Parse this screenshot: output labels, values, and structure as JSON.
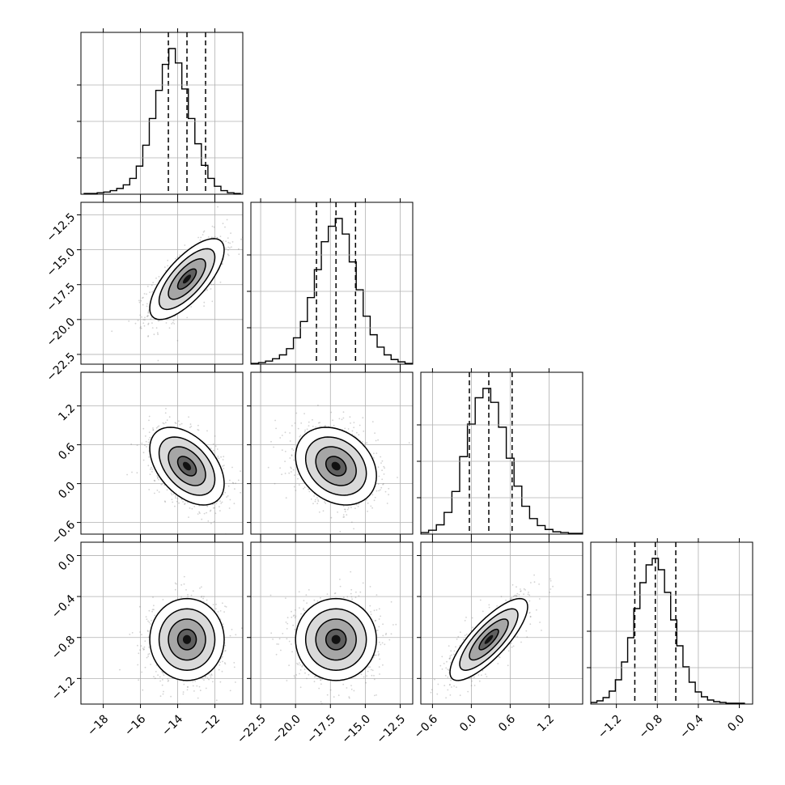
{
  "chart_data": {
    "type": "corner",
    "title": "",
    "dimensions": 4,
    "parameter_labels": [
      "",
      "",
      "",
      ""
    ],
    "ranges": [
      [
        -19.2,
        -10.5
      ],
      [
        -23.2,
        -11.6
      ],
      [
        -0.78,
        1.72
      ],
      [
        -1.45,
        0.13
      ]
    ],
    "ticks": [
      [
        -18,
        -16,
        -14,
        -12
      ],
      [
        -22.5,
        -20.0,
        -17.5,
        -15.0,
        -12.5
      ],
      [
        -0.6,
        0.0,
        0.6,
        1.2
      ],
      [
        -1.2,
        -0.8,
        -0.4,
        0.0
      ]
    ],
    "tick_labels": [
      [
        "−18",
        "−16",
        "−14",
        "−12"
      ],
      [
        "−22.5",
        "−20.0",
        "−17.5",
        "−15.0",
        "−12.5"
      ],
      [
        "−0.6",
        "0.0",
        "0.6",
        "1.2"
      ],
      [
        "−1.2",
        "−0.8",
        "−0.4",
        "0.0"
      ]
    ],
    "quantiles": [
      [
        -14.5,
        -13.5,
        -12.5
      ],
      [
        -18.5,
        -17.1,
        -15.7
      ],
      [
        -0.03,
        0.27,
        0.63
      ],
      [
        -1.02,
        -0.82,
        -0.62
      ]
    ],
    "marginals": [
      {
        "bins": [
          -18.85,
          -18.5,
          -18.15,
          -17.8,
          -17.45,
          -17.1,
          -16.75,
          -16.4,
          -16.05,
          -15.7,
          -15.35,
          -15.0,
          -14.65,
          -14.3,
          -13.95,
          -13.6,
          -13.25,
          -12.9,
          -12.55,
          -12.2,
          -11.85,
          -11.5,
          -11.15,
          -10.8
        ],
        "counts": [
          1,
          1,
          2,
          3,
          5,
          8,
          13,
          22,
          39,
          68,
          105,
          144,
          180,
          202,
          182,
          146,
          105,
          70,
          40,
          22,
          11,
          5,
          2,
          1
        ]
      },
      {
        "bins": [
          -22.9,
          -22.4,
          -21.9,
          -21.4,
          -20.9,
          -20.4,
          -19.9,
          -19.4,
          -18.9,
          -18.4,
          -17.9,
          -17.4,
          -16.9,
          -16.4,
          -15.9,
          -15.4,
          -14.9,
          -14.4,
          -13.9,
          -13.4,
          -12.9,
          -12.4,
          -11.9
        ],
        "counts": [
          1,
          2,
          4,
          7,
          12,
          20,
          34,
          55,
          86,
          122,
          158,
          178,
          188,
          168,
          132,
          96,
          62,
          38,
          22,
          12,
          6,
          3,
          1
        ]
      },
      {
        "bins": [
          -0.72,
          -0.6,
          -0.48,
          -0.36,
          -0.24,
          -0.12,
          0.0,
          0.12,
          0.24,
          0.36,
          0.48,
          0.6,
          0.72,
          0.84,
          0.96,
          1.08,
          1.2,
          1.32,
          1.44,
          1.56,
          1.68
        ],
        "counts": [
          2,
          5,
          12,
          28,
          55,
          100,
          142,
          176,
          188,
          170,
          138,
          98,
          62,
          36,
          20,
          11,
          6,
          3,
          2,
          1,
          1
        ]
      },
      {
        "bins": [
          -1.42,
          -1.36,
          -1.3,
          -1.24,
          -1.18,
          -1.12,
          -1.06,
          -1.0,
          -0.94,
          -0.88,
          -0.82,
          -0.76,
          -0.7,
          -0.64,
          -0.58,
          -0.52,
          -0.46,
          -0.4,
          -0.34,
          -0.28,
          -0.22,
          -0.16,
          -0.1,
          -0.04,
          0.02
        ],
        "counts": [
          2,
          4,
          8,
          16,
          30,
          52,
          82,
          118,
          150,
          172,
          180,
          166,
          138,
          104,
          72,
          46,
          27,
          15,
          9,
          5,
          3,
          2,
          1,
          1,
          1
        ]
      }
    ],
    "joint": [
      {
        "i": 1,
        "j": 0,
        "mean": [
          -13.5,
          -17.1
        ],
        "sd": [
          1.0,
          1.45
        ],
        "corr": 0.72
      },
      {
        "i": 2,
        "j": 0,
        "mean": [
          -13.5,
          0.27
        ],
        "sd": [
          1.0,
          0.3
        ],
        "corr": -0.45
      },
      {
        "i": 2,
        "j": 1,
        "mean": [
          -17.1,
          0.27
        ],
        "sd": [
          1.45,
          0.3
        ],
        "corr": -0.25
      },
      {
        "i": 3,
        "j": 0,
        "mean": [
          -13.5,
          -0.82
        ],
        "sd": [
          1.0,
          0.2
        ],
        "corr": 0.0
      },
      {
        "i": 3,
        "j": 1,
        "mean": [
          -17.1,
          -0.82
        ],
        "sd": [
          1.45,
          0.2
        ],
        "corr": 0.0
      },
      {
        "i": 3,
        "j": 2,
        "mean": [
          0.27,
          -0.82
        ],
        "sd": [
          0.3,
          0.2
        ],
        "corr": 0.8
      }
    ],
    "contour_levels_sigma": [
      0.5,
      1.0,
      1.5,
      2.0
    ],
    "grid": true,
    "colors": {
      "hist": "#000000",
      "scatter": "#7f7f7f",
      "grid": "#b0b0b0",
      "quantile": "#000000"
    }
  }
}
